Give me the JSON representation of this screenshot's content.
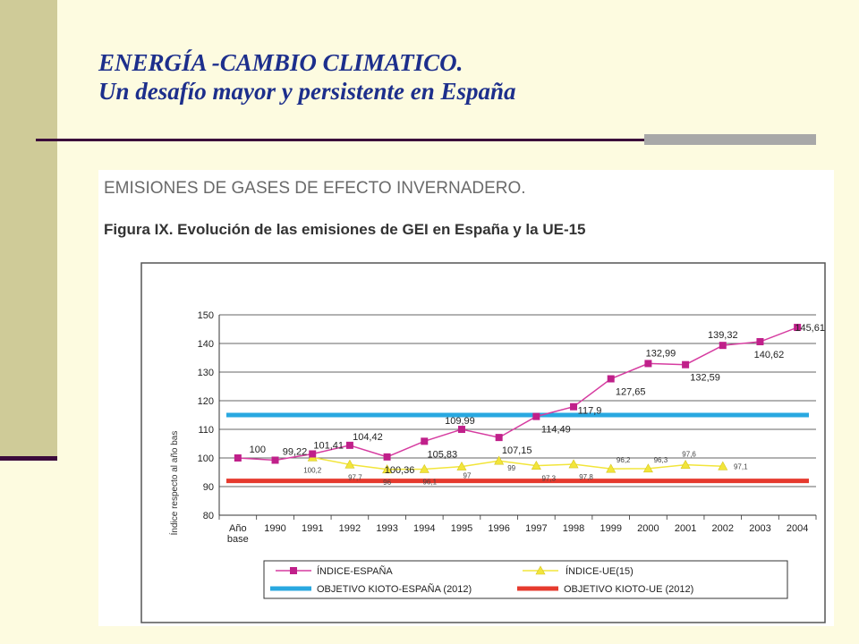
{
  "slide": {
    "title_line1": "ENERGÍA -CAMBIO CLIMATICO.",
    "title_line2": "Un desafío mayor y persistente en España"
  },
  "colors": {
    "title": "#1d2f8c",
    "spain": "#d63ca0",
    "spain_marker": "#c0208a",
    "eu": "#f2e53a",
    "kyoto_spain": "#29a8e0",
    "kyoto_eu": "#e63a2e"
  },
  "chart_data": {
    "type": "line",
    "heading": "EMISIONES DE GASES DE EFECTO INVERNADERO.",
    "title": "Figura IX. Evolución de las emisiones de GEI en España y la UE-15",
    "ylabel": "Índice respecto al año bas",
    "ylim": [
      80,
      150
    ],
    "yticks": [
      80,
      90,
      100,
      110,
      120,
      130,
      140,
      150
    ],
    "categories": [
      "Año base",
      "1990",
      "1991",
      "1992",
      "1993",
      "1994",
      "1995",
      "1996",
      "1997",
      "1998",
      "1999",
      "2000",
      "2001",
      "2002",
      "2003",
      "2004"
    ],
    "series": [
      {
        "name": "ÍNDICE-ESPAÑA",
        "values": [
          100,
          99.22,
          101.41,
          104.42,
          100.36,
          105.83,
          109.99,
          107.15,
          114.49,
          117.9,
          127.65,
          132.99,
          132.59,
          139.32,
          140.62,
          145.61
        ],
        "labels": [
          "100",
          "99,22",
          "101,41",
          "104,42",
          "100,36",
          "105,83",
          "109,99",
          "107,15",
          "114,49",
          "117,9",
          "127,65",
          "132,99",
          "132,59",
          "139,32",
          "140,62",
          "145,61"
        ]
      },
      {
        "name": "ÍNDICE-UE(15)",
        "values": [
          null,
          null,
          100.2,
          97.7,
          96,
          96.1,
          97,
          99,
          97.3,
          97.8,
          96.2,
          96.3,
          97.6,
          97.1,
          null,
          null
        ],
        "labels": [
          "",
          "",
          "100,2",
          "97,7",
          "96",
          "96,1",
          "97",
          "99",
          "97,3",
          "97,8",
          "96,2",
          "96,3",
          "97,6",
          "97,1",
          "",
          ""
        ]
      },
      {
        "name": "OBJETIVO KIOTO-ESPAÑA (2012)",
        "value": 115
      },
      {
        "name": "OBJETIVO KIOTO-UE (2012)",
        "value": 92
      }
    ],
    "legend_position": "bottom"
  }
}
